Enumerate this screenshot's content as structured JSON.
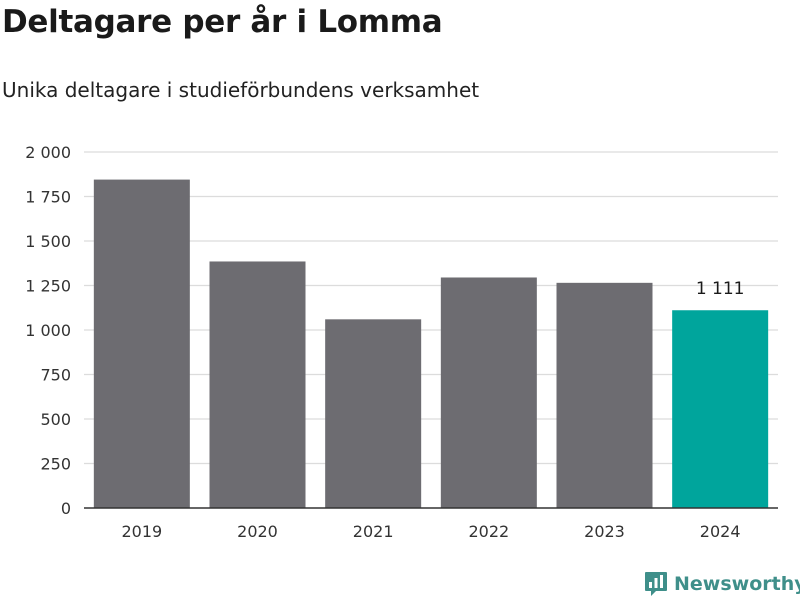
{
  "title": "Deltagare per år i Lomma",
  "subtitle": "Unika deltagare i studieförbundens verksamhet",
  "brand": {
    "name": "Newsworthy",
    "icon": "newsworthy-logo-icon",
    "color": "#3f8f8a"
  },
  "colors": {
    "bar": "#6d6c71",
    "highlight": "#00a59c",
    "grid": "#dcdcdc",
    "axis": "#333333"
  },
  "chart_data": {
    "type": "bar",
    "title": "Deltagare per år i Lomma",
    "subtitle": "Unika deltagare i studieförbundens verksamhet",
    "xlabel": "",
    "ylabel": "",
    "categories": [
      "2019",
      "2020",
      "2021",
      "2022",
      "2023",
      "2024"
    ],
    "values": [
      1845,
      1385,
      1060,
      1295,
      1265,
      1111
    ],
    "highlight_index": 5,
    "data_labels": [
      {
        "index": 5,
        "text": "1 111"
      }
    ],
    "ylim": [
      0,
      2000
    ],
    "yticks": [
      0,
      250,
      500,
      750,
      1000,
      1250,
      1500,
      1750,
      2000
    ],
    "ytick_labels": [
      "0",
      "250",
      "500",
      "750",
      "1 000",
      "1 250",
      "1 500",
      "1 750",
      "2 000"
    ],
    "grid": true,
    "legend": "none"
  }
}
